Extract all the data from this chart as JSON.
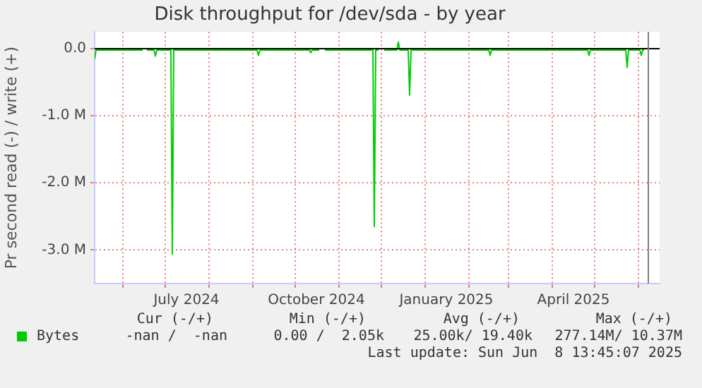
{
  "chart_data": {
    "type": "line",
    "title": "Disk throughput for /dev/sda - by year",
    "ylabel": "Pr second read (-) / write (+)",
    "x": [
      "2024-05-12",
      "2024-05-13",
      "2024-06-15",
      "2024-06-16",
      "2024-06-18",
      "2024-06-23",
      "2024-06-24",
      "2024-06-25",
      "2024-07-05",
      "2024-07-06",
      "2024-07-07",
      "2024-09-04",
      "2024-09-05",
      "2024-09-06",
      "2024-10-11",
      "2024-10-12",
      "2024-10-13",
      "2024-10-18",
      "2024-10-19",
      "2024-10-22",
      "2024-11-25",
      "2024-11-26",
      "2024-11-27",
      "2024-11-29",
      "2024-11-30",
      "2024-12-03",
      "2024-12-12",
      "2024-12-13",
      "2024-12-14",
      "2024-12-20",
      "2024-12-21",
      "2024-12-22",
      "2025-02-15",
      "2025-02-16",
      "2025-02-17",
      "2025-04-26",
      "2025-04-27",
      "2025-04-28",
      "2025-05-23",
      "2025-05-24",
      "2025-05-25",
      "2025-06-02",
      "2025-06-03",
      "2025-06-04",
      "2025-06-05"
    ],
    "series": [
      {
        "name": "Bytes",
        "color": "#00cc00",
        "values": [
          -0.16,
          -0.02,
          -0.02,
          null,
          -0.02,
          -0.02,
          -0.11,
          -0.02,
          -0.02,
          -3.06,
          -0.02,
          -0.02,
          -0.1,
          -0.02,
          -0.02,
          -0.06,
          -0.02,
          -0.02,
          null,
          -0.02,
          -0.02,
          -2.65,
          -0.02,
          -0.02,
          null,
          -0.02,
          -0.02,
          0.1,
          -0.02,
          -0.02,
          -0.69,
          -0.02,
          -0.02,
          -0.1,
          -0.02,
          -0.02,
          -0.1,
          -0.02,
          -0.02,
          -0.28,
          -0.02,
          -0.02,
          -0.1,
          -0.02,
          -0.02
        ]
      }
    ],
    "xlim": [
      "2024-05-12",
      "2025-06-16"
    ],
    "xticks": [
      {
        "value": "2024-06-01",
        "label": null
      },
      {
        "value": "2024-07-01",
        "label": null
      },
      {
        "value": "2024-07-16",
        "label": "July 2024"
      },
      {
        "value": "2024-08-01",
        "label": null
      },
      {
        "value": "2024-09-01",
        "label": null
      },
      {
        "value": "2024-10-01",
        "label": null
      },
      {
        "value": "2024-10-16",
        "label": "October 2024"
      },
      {
        "value": "2024-11-01",
        "label": null
      },
      {
        "value": "2024-12-01",
        "label": null
      },
      {
        "value": "2025-01-01",
        "label": null
      },
      {
        "value": "2025-01-16",
        "label": "January 2025"
      },
      {
        "value": "2025-02-01",
        "label": null
      },
      {
        "value": "2025-03-01",
        "label": null
      },
      {
        "value": "2025-04-01",
        "label": null
      },
      {
        "value": "2025-04-16",
        "label": "April 2025"
      },
      {
        "value": "2025-05-01",
        "label": null
      },
      {
        "value": "2025-06-01",
        "label": null
      }
    ],
    "ylim": [
      -3.5,
      0.25
    ],
    "yticks": [
      {
        "value": 0,
        "label": "0.0"
      },
      {
        "value": -1,
        "label": "-1.0 M"
      },
      {
        "value": -2,
        "label": "-2.0 M"
      },
      {
        "value": -3,
        "label": "-3.0 M"
      }
    ],
    "ref_lines": [
      {
        "axis": "y",
        "value": 0,
        "color": "#000000"
      },
      {
        "axis": "x",
        "value": "2025-06-08",
        "color": "#808080"
      }
    ],
    "grid": true,
    "legend": "bottom",
    "marker": "none",
    "line_style": "solid",
    "annotations": [
      "Cur (-/+)",
      "Min (-/+)",
      "Avg (-/+)",
      "Max (-/+)",
      "-nan /  -nan",
      "0.00 /  2.05k",
      "25.00k/ 19.40k",
      "277.14M/ 10.37M",
      "Last update: Sun Jun  8 13:45:07 2025"
    ]
  }
}
